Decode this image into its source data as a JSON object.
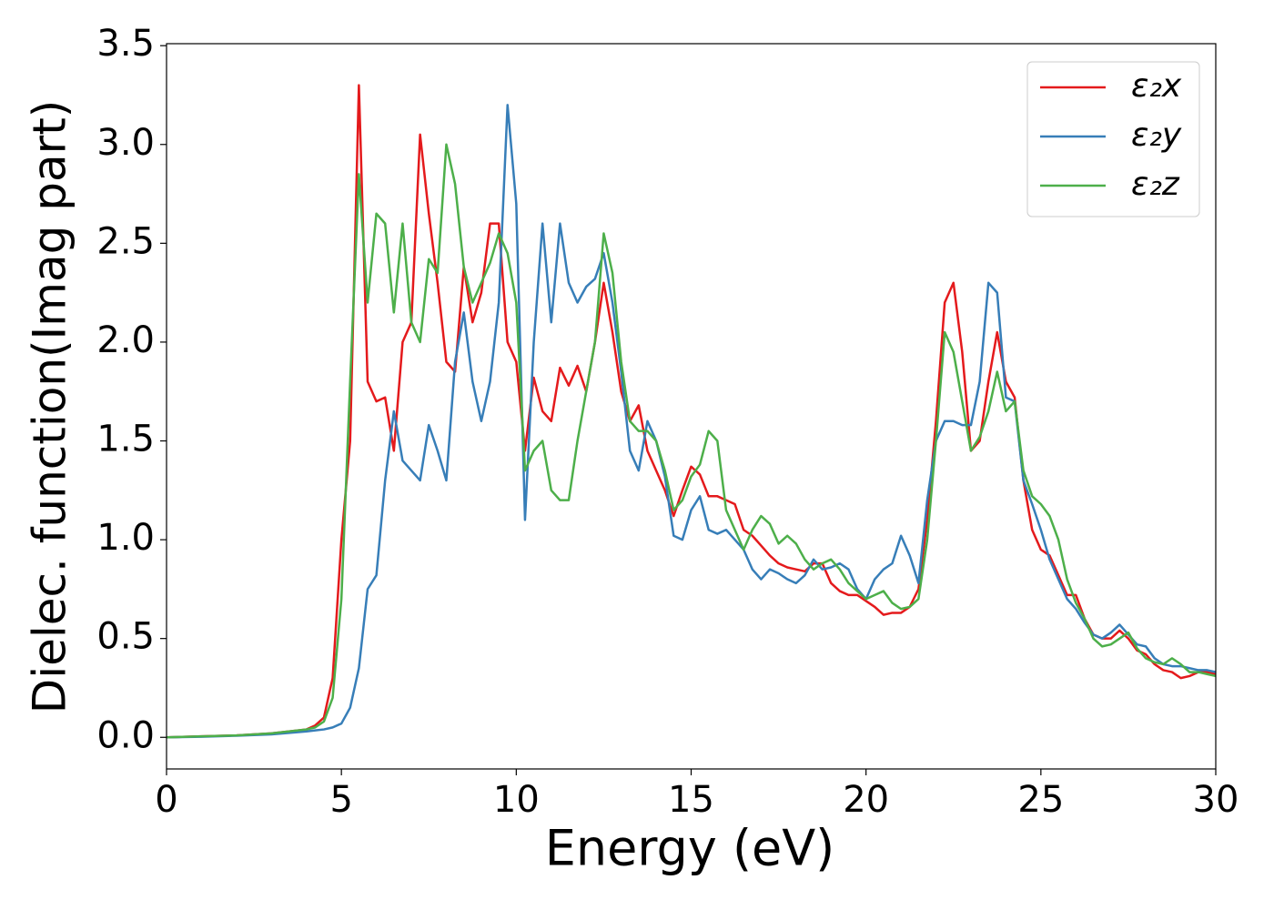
{
  "chart_data": {
    "type": "line",
    "xlabel": "Energy (eV)",
    "ylabel": "Dielec. function(Imag part)",
    "x": [
      0,
      1,
      2,
      3,
      4,
      4.25,
      4.5,
      4.75,
      5,
      5.25,
      5.5,
      5.75,
      6,
      6.25,
      6.5,
      6.75,
      7,
      7.25,
      7.5,
      7.75,
      8,
      8.25,
      8.5,
      8.75,
      9,
      9.25,
      9.5,
      9.75,
      10,
      10.25,
      10.5,
      10.75,
      11,
      11.25,
      11.5,
      11.75,
      12,
      12.25,
      12.5,
      12.75,
      13,
      13.25,
      13.5,
      13.75,
      14,
      14.25,
      14.5,
      14.75,
      15,
      15.25,
      15.5,
      15.75,
      16,
      16.25,
      16.5,
      16.75,
      17,
      17.25,
      17.5,
      17.75,
      18,
      18.25,
      18.5,
      18.75,
      19,
      19.25,
      19.5,
      19.75,
      20,
      20.25,
      20.5,
      20.75,
      21,
      21.25,
      21.5,
      21.75,
      22,
      22.25,
      22.5,
      22.75,
      23,
      23.25,
      23.5,
      23.75,
      24,
      24.25,
      24.5,
      24.75,
      25,
      25.25,
      25.5,
      25.75,
      26,
      26.25,
      26.5,
      26.75,
      27,
      27.25,
      27.5,
      27.75,
      28,
      28.25,
      28.5,
      28.75,
      29,
      29.25,
      29.5,
      29.75,
      30
    ],
    "series": [
      {
        "name": "ε₂x",
        "color": "#e41a1c",
        "values": [
          0,
          0.005,
          0.01,
          0.02,
          0.04,
          0.06,
          0.1,
          0.3,
          1.0,
          1.5,
          3.3,
          1.8,
          1.7,
          1.72,
          1.45,
          2.0,
          2.1,
          3.05,
          2.65,
          2.3,
          1.9,
          1.85,
          2.38,
          2.1,
          2.25,
          2.6,
          2.6,
          2.0,
          1.9,
          1.45,
          1.82,
          1.65,
          1.6,
          1.87,
          1.78,
          1.88,
          1.75,
          2.0,
          2.3,
          2.05,
          1.75,
          1.6,
          1.68,
          1.45,
          1.35,
          1.25,
          1.12,
          1.25,
          1.37,
          1.33,
          1.22,
          1.22,
          1.2,
          1.18,
          1.05,
          1.02,
          0.97,
          0.92,
          0.88,
          0.86,
          0.85,
          0.84,
          0.88,
          0.88,
          0.78,
          0.74,
          0.72,
          0.72,
          0.69,
          0.66,
          0.62,
          0.63,
          0.63,
          0.66,
          0.75,
          1.1,
          1.6,
          2.2,
          2.3,
          1.95,
          1.45,
          1.5,
          1.8,
          2.05,
          1.8,
          1.72,
          1.3,
          1.05,
          0.95,
          0.92,
          0.82,
          0.72,
          0.72,
          0.6,
          0.52,
          0.5,
          0.5,
          0.54,
          0.5,
          0.44,
          0.42,
          0.37,
          0.34,
          0.33,
          0.3,
          0.31,
          0.33,
          0.33,
          0.32
        ]
      },
      {
        "name": "ε₂y",
        "color": "#377eb8",
        "values": [
          0,
          0.003,
          0.008,
          0.015,
          0.03,
          0.035,
          0.04,
          0.05,
          0.07,
          0.15,
          0.35,
          0.75,
          0.82,
          1.3,
          1.65,
          1.4,
          1.35,
          1.3,
          1.58,
          1.45,
          1.3,
          1.9,
          2.15,
          1.8,
          1.6,
          1.8,
          2.2,
          3.2,
          2.7,
          1.1,
          2.0,
          2.6,
          2.1,
          2.6,
          2.3,
          2.2,
          2.28,
          2.32,
          2.45,
          2.2,
          1.85,
          1.45,
          1.35,
          1.6,
          1.5,
          1.32,
          1.02,
          1.0,
          1.15,
          1.22,
          1.05,
          1.03,
          1.05,
          1.0,
          0.95,
          0.85,
          0.8,
          0.85,
          0.83,
          0.8,
          0.78,
          0.82,
          0.9,
          0.85,
          0.86,
          0.88,
          0.85,
          0.75,
          0.7,
          0.8,
          0.85,
          0.88,
          1.02,
          0.92,
          0.78,
          1.2,
          1.5,
          1.6,
          1.6,
          1.58,
          1.58,
          1.8,
          2.3,
          2.25,
          1.72,
          1.7,
          1.3,
          1.18,
          1.05,
          0.9,
          0.8,
          0.7,
          0.65,
          0.58,
          0.52,
          0.5,
          0.53,
          0.57,
          0.52,
          0.47,
          0.46,
          0.4,
          0.37,
          0.36,
          0.36,
          0.35,
          0.34,
          0.34,
          0.33
        ]
      },
      {
        "name": "ε₂z",
        "color": "#4daf4a",
        "values": [
          0,
          0.005,
          0.01,
          0.02,
          0.04,
          0.05,
          0.08,
          0.2,
          0.7,
          1.8,
          2.85,
          2.2,
          2.65,
          2.6,
          2.15,
          2.6,
          2.1,
          2.0,
          2.42,
          2.35,
          3.0,
          2.8,
          2.38,
          2.2,
          2.3,
          2.4,
          2.55,
          2.45,
          2.2,
          1.35,
          1.45,
          1.5,
          1.25,
          1.2,
          1.2,
          1.5,
          1.75,
          2.0,
          2.55,
          2.35,
          1.9,
          1.6,
          1.55,
          1.55,
          1.5,
          1.35,
          1.15,
          1.2,
          1.32,
          1.38,
          1.55,
          1.5,
          1.15,
          1.05,
          0.95,
          1.05,
          1.12,
          1.08,
          0.98,
          1.02,
          0.98,
          0.9,
          0.85,
          0.88,
          0.9,
          0.85,
          0.78,
          0.74,
          0.7,
          0.72,
          0.74,
          0.68,
          0.65,
          0.66,
          0.7,
          1.0,
          1.5,
          2.05,
          1.95,
          1.7,
          1.45,
          1.52,
          1.65,
          1.85,
          1.65,
          1.7,
          1.35,
          1.22,
          1.18,
          1.12,
          1.0,
          0.8,
          0.68,
          0.6,
          0.5,
          0.46,
          0.47,
          0.5,
          0.53,
          0.45,
          0.4,
          0.38,
          0.37,
          0.4,
          0.37,
          0.33,
          0.33,
          0.32,
          0.31
        ]
      }
    ],
    "xlim": [
      0,
      30
    ],
    "xticks": [
      0,
      5,
      10,
      15,
      20,
      25,
      30
    ],
    "ylim": [
      -0.16,
      3.51
    ],
    "yticks": [
      {
        "value": 0,
        "label": "0.0"
      },
      0.5,
      {
        "value": 1,
        "label": "1.0"
      },
      1.5,
      {
        "value": 2,
        "label": "2.0"
      },
      2.5,
      {
        "value": 3,
        "label": "3.0"
      },
      3.5
    ],
    "grid": false,
    "legend": "upper right"
  }
}
